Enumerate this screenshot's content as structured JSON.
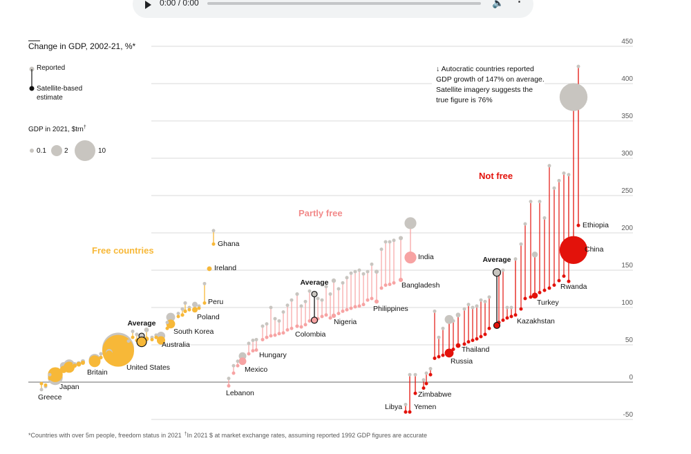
{
  "audio": {
    "time": "0:00 / 0:00",
    "play_icon": "play-icon",
    "volume_icon": "volume-icon",
    "menu_icon": "more-vert-icon"
  },
  "colors": {
    "free": "#f7b838",
    "partly_free_light": "#f7a3a3",
    "partly_free_group": "#f28a8a",
    "not_free": "#e3120b",
    "reported": "#c8c5c0",
    "text": "#121212",
    "grid": "#d9d9d9"
  },
  "legend": {
    "title": "Change in GDP, 2002-21, %*",
    "reported": "Reported",
    "satellite": "Satellite-based estimate",
    "size_title": "GDP in 2021, $trn",
    "size_title_mark": "†",
    "sizes": [
      "0.1",
      "2",
      "10"
    ]
  },
  "annotation": {
    "lines": [
      "↓ Autocratic countries reported",
      "GDP growth of 147% on average.",
      "Satellite imagery suggests the",
      "true figure is 76%"
    ]
  },
  "footnote": {
    "part1": "*Countries with over 5m people, freedom status in 2021",
    "mark": "†",
    "part2": "In 2021 $ at market exchange rates, assuming reported 1992 GDP figures are accurate"
  },
  "chart_data": {
    "type": "scatter",
    "title": "Change in GDP, 2002-21, %*",
    "ylabel": "Change in GDP, %",
    "ylim": [
      -50,
      450
    ],
    "yticks": [
      450,
      400,
      350,
      300,
      250,
      200,
      150,
      100,
      50,
      0,
      -50
    ],
    "groups": [
      {
        "name": "Free countries",
        "average_label": "Average",
        "average_reported": 62,
        "average_satellite": 54
      },
      {
        "name": "Partly free",
        "average_label": "Average",
        "average_reported": 118,
        "average_satellite": 83
      },
      {
        "name": "Not free",
        "average_label": "Average",
        "average_reported": 147,
        "average_satellite": 76
      }
    ],
    "labeled_countries": [
      {
        "name": "Greece",
        "group": "free",
        "reported": -10,
        "satellite": -2,
        "gdp": 0.2
      },
      {
        "name": "Japan",
        "group": "free",
        "reported": 6,
        "satellite": 10,
        "gdp": 5
      },
      {
        "name": "Britain",
        "group": "free",
        "reported": 30,
        "satellite": 28,
        "gdp": 3.1
      },
      {
        "name": "United States",
        "group": "free",
        "reported": 45,
        "satellite": 42,
        "gdp": 23
      },
      {
        "name": "Australia",
        "group": "free",
        "reported": 62,
        "satellite": 56,
        "gdp": 1.6
      },
      {
        "name": "South Korea",
        "group": "free",
        "reported": 87,
        "satellite": 78,
        "gdp": 1.8
      },
      {
        "name": "Poland",
        "group": "free",
        "reported": 104,
        "satellite": 97,
        "gdp": 0.7
      },
      {
        "name": "Peru",
        "group": "free",
        "reported": 132,
        "satellite": 106,
        "gdp": 0.2
      },
      {
        "name": "Ireland",
        "group": "free",
        "reported": 152,
        "satellite": 152,
        "gdp": 0.5
      },
      {
        "name": "Ghana",
        "group": "free",
        "reported": 203,
        "satellite": 185,
        "gdp": 0.08
      },
      {
        "name": "Lebanon",
        "group": "partly",
        "reported": 5,
        "satellite": -5,
        "gdp": 0.02
      },
      {
        "name": "Mexico",
        "group": "partly",
        "reported": 35,
        "satellite": 28,
        "gdp": 1.3
      },
      {
        "name": "Hungary",
        "group": "partly",
        "reported": 57,
        "satellite": 43,
        "gdp": 0.18
      },
      {
        "name": "Colombia",
        "group": "partly",
        "reported": 118,
        "satellite": 75,
        "gdp": 0.3
      },
      {
        "name": "Nigeria",
        "group": "partly",
        "reported": 136,
        "satellite": 89,
        "gdp": 0.44
      },
      {
        "name": "Philippines",
        "group": "partly",
        "reported": 148,
        "satellite": 108,
        "gdp": 0.4
      },
      {
        "name": "Bangladesh",
        "group": "partly",
        "reported": 193,
        "satellite": 137,
        "gdp": 0.42
      },
      {
        "name": "India",
        "group": "partly",
        "reported": 213,
        "satellite": 167,
        "gdp": 3.2
      },
      {
        "name": "Libya",
        "group": "notfree",
        "reported": -30,
        "satellite": -40,
        "gdp": 0.04
      },
      {
        "name": "Yemen",
        "group": "notfree",
        "reported": 10,
        "satellite": -40,
        "gdp": 0.02
      },
      {
        "name": "Zimbabwe",
        "group": "notfree",
        "reported": 10,
        "satellite": -15,
        "gdp": 0.02
      },
      {
        "name": "Russia",
        "group": "notfree",
        "reported": 84,
        "satellite": 39,
        "gdp": 1.8
      },
      {
        "name": "Thailand",
        "group": "notfree",
        "reported": 90,
        "satellite": 49,
        "gdp": 0.5
      },
      {
        "name": "Kazakhstan",
        "group": "notfree",
        "reported": 165,
        "satellite": 90,
        "gdp": 0.19
      },
      {
        "name": "Turkey",
        "group": "notfree",
        "reported": 171,
        "satellite": 116,
        "gdp": 0.8
      },
      {
        "name": "Rwanda",
        "group": "notfree",
        "reported": 278,
        "satellite": 135,
        "gdp": 0.01
      },
      {
        "name": "China",
        "group": "notfree",
        "reported": 382,
        "satellite": 177,
        "gdp": 17.7
      },
      {
        "name": "Ethiopia",
        "group": "notfree",
        "reported": 423,
        "satellite": 210,
        "gdp": 0.1
      }
    ]
  }
}
